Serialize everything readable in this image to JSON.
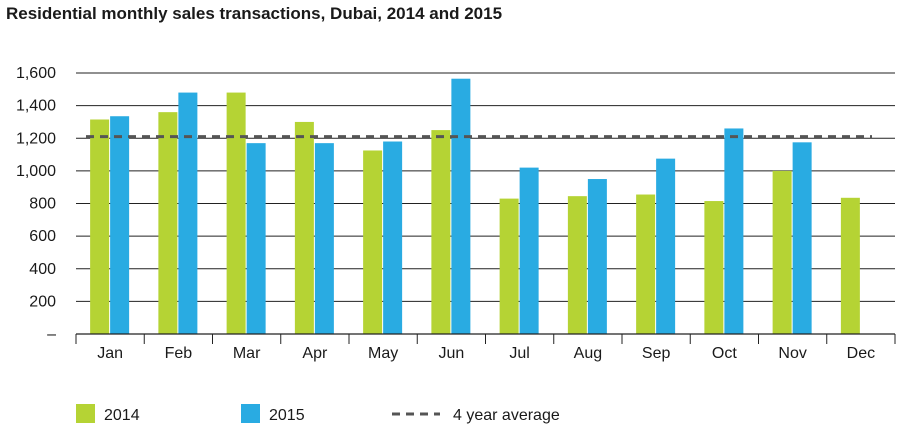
{
  "chart_data": {
    "type": "bar",
    "title": "Residential monthly sales transactions, Dubai, 2014 and 2015",
    "xlabel": "",
    "ylabel": "",
    "categories": [
      "Jan",
      "Feb",
      "Mar",
      "Apr",
      "May",
      "Jun",
      "Jul",
      "Aug",
      "Sep",
      "Oct",
      "Nov",
      "Dec"
    ],
    "series": [
      {
        "name": "2014",
        "color": "#b5d334",
        "values": [
          1315,
          1360,
          1480,
          1300,
          1125,
          1250,
          830,
          845,
          855,
          815,
          1000,
          835
        ]
      },
      {
        "name": "2015",
        "color": "#29abe2",
        "values": [
          1335,
          1480,
          1170,
          1170,
          1180,
          1565,
          1020,
          950,
          1075,
          1260,
          1175,
          null
        ]
      }
    ],
    "reference_line": {
      "name": "4 year average",
      "value": 1210,
      "color": "#555555",
      "style": "dashed"
    },
    "ylim": [
      0,
      1600
    ],
    "yticks": [
      0,
      200,
      400,
      600,
      800,
      1000,
      1200,
      1400,
      1600
    ],
    "ytick_labels": [
      "–",
      "200",
      "400",
      "600",
      "800",
      "1,000",
      "1,200",
      "1,400",
      "1,600"
    ],
    "grid": true,
    "legend_position": "bottom"
  }
}
